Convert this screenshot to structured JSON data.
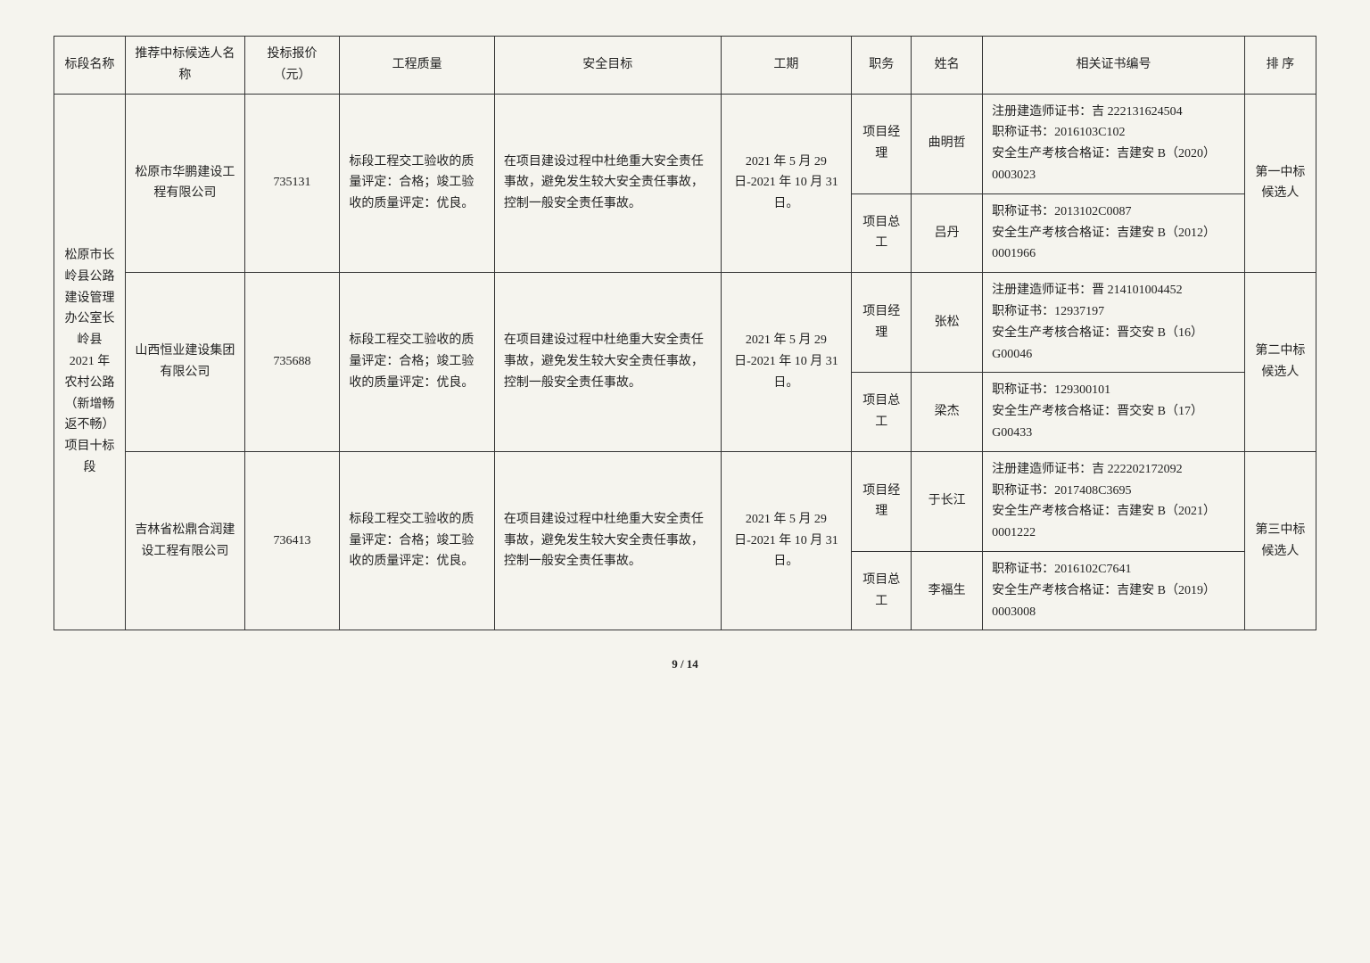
{
  "headers": {
    "section": "标段名称",
    "candidate": "推荐中标候选人名称",
    "price": "投标报价（元）",
    "quality": "工程质量",
    "safety": "安全目标",
    "period": "工期",
    "role": "职务",
    "name": "姓名",
    "cert": "相关证书编号",
    "rank": "排 序"
  },
  "section_name": "松原市长岭县公路建设管理办公室长岭县 2021 年农村公路（新增畅返不畅）项目十标段",
  "common": {
    "quality": "标段工程交工验收的质量评定：合格；竣工验收的质量评定：优良。",
    "safety": "在项目建设过程中杜绝重大安全责任事故，避免发生较大安全责任事故，控制一般安全责任事故。",
    "period": "2021 年 5 月 29 日-2021 年 10 月 31 日。"
  },
  "roles": {
    "pm": "项目经理",
    "ce": "项目总工"
  },
  "bidders": [
    {
      "candidate": "松原市华鹏建设工程有限公司",
      "price": "735131",
      "rank": "第一中标候选人",
      "persons": [
        {
          "role_key": "pm",
          "name": "曲明哲",
          "cert": "注册建造师证书：吉 222131624504\n职称证书：2016103C102\n安全生产考核合格证：吉建安 B（2020）0003023"
        },
        {
          "role_key": "ce",
          "name": "吕丹",
          "cert": "职称证书：2013102C0087\n安全生产考核合格证：吉建安 B（2012）0001966"
        }
      ]
    },
    {
      "candidate": "山西恒业建设集团有限公司",
      "price": "735688",
      "rank": "第二中标候选人",
      "persons": [
        {
          "role_key": "pm",
          "name": "张松",
          "cert": "注册建造师证书：晋 214101004452\n职称证书：12937197\n安全生产考核合格证：晋交安 B（16）G00046"
        },
        {
          "role_key": "ce",
          "name": "梁杰",
          "cert": "职称证书：129300101\n安全生产考核合格证：晋交安 B（17）G00433"
        }
      ]
    },
    {
      "candidate": "吉林省松鼎合润建设工程有限公司",
      "price": "736413",
      "rank": "第三中标候选人",
      "persons": [
        {
          "role_key": "pm",
          "name": "于长江",
          "cert": "注册建造师证书：吉 222202172092\n职称证书：2017408C3695\n安全生产考核合格证：吉建安 B（2021）0001222"
        },
        {
          "role_key": "ce",
          "name": "李福生",
          "cert": "职称证书：2016102C7641\n安全生产考核合格证：吉建安 B（2019）0003008"
        }
      ]
    }
  ],
  "page_num": "9 / 14"
}
